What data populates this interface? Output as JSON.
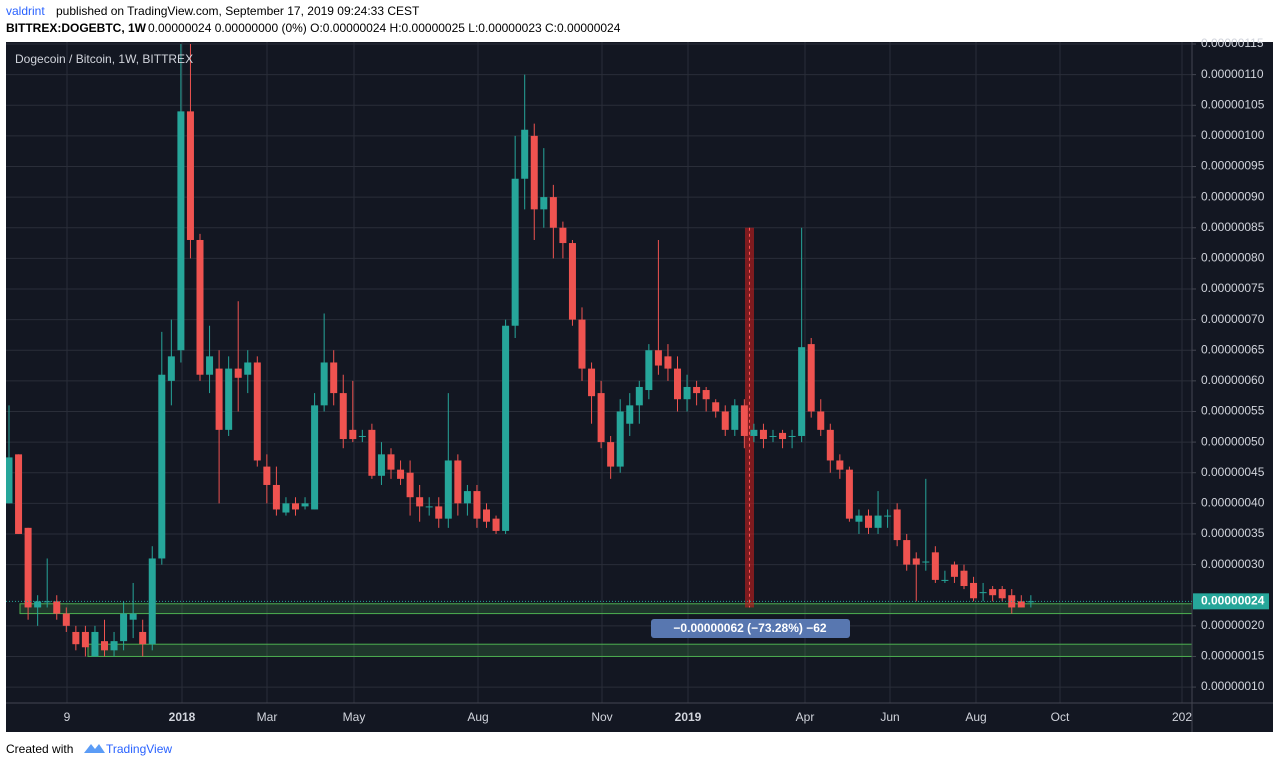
{
  "header": {
    "author": "valdrint",
    "published": "published on TradingView.com, September 17, 2019 09:24:33 CEST",
    "symbol": "BITTREX:DOGEBTC, 1W",
    "quote": "0.00000024 0.00000000 (0%) O:0.00000024 H:0.00000025 L:0.00000023 C:0.00000024"
  },
  "footer": {
    "created": "Created with",
    "brand": "TradingView"
  },
  "chart_data": {
    "type": "candlestick",
    "title": "Dogecoin / Bitcoin, 1W, BITTREX",
    "up_color": "#26a69a",
    "down_color": "#ef5350",
    "open": [
      4e-07,
      4.8e-07,
      3.6e-07,
      2.3e-07,
      2.4e-07,
      2.4e-07,
      2.2e-07,
      1.9e-07,
      1.9e-07,
      1.5e-07,
      1.75e-07,
      1.6e-07,
      1.75e-07,
      2.1e-07,
      1.9e-07,
      1.7e-07,
      3.1e-07,
      6e-07,
      6.5e-07,
      1.04e-06,
      8.3e-07,
      6.1e-07,
      6.2e-07,
      5.2e-07,
      6.2e-07,
      6.1e-07,
      6.3e-07,
      4.6e-07,
      4.3e-07,
      3.85e-07,
      4e-07,
      3.95e-07,
      3.9e-07,
      5.6e-07,
      6.3e-07,
      5.8e-07,
      5.2e-07,
      5.1e-07,
      5.2e-07,
      4.45e-07,
      4.8e-07,
      4.55e-07,
      4.5e-07,
      4.1e-07,
      3.95e-07,
      3.95e-07,
      3.75e-07,
      4.7e-07,
      4e-07,
      4.2e-07,
      3.9e-07,
      3.75e-07,
      3.55e-07,
      6.9e-07,
      9.3e-07,
      1e-06,
      8.8e-07,
      9e-07,
      8.5e-07,
      8.25e-07,
      7e-07,
      6.2e-07,
      5.8e-07,
      5e-07,
      4.6e-07,
      5.3e-07,
      5.6e-07,
      5.85e-07,
      6.5e-07,
      6.4e-07,
      6.2e-07,
      5.7e-07,
      5.9e-07,
      5.85e-07,
      5.65e-07,
      5.5e-07,
      5.2e-07,
      5.6e-07,
      5.1e-07,
      5.2e-07,
      5.1e-07,
      5.15e-07,
      5.1e-07,
      5.1e-07,
      6.6e-07,
      5.5e-07,
      5.2e-07,
      4.7e-07,
      4.55e-07,
      3.7e-07,
      3.8e-07,
      3.6e-07,
      3.8e-07,
      3.9e-07,
      3.4e-07,
      3.1e-07,
      3.05e-07,
      3.2e-07,
      2.75e-07,
      3e-07,
      2.9e-07,
      2.7e-07,
      2.55e-07,
      2.6e-07,
      2.6e-07,
      2.5e-07,
      2.4e-07,
      2.4e-07
    ],
    "high": [
      5.6e-07,
      4.8e-07,
      3.6e-07,
      2.5e-07,
      3.1e-07,
      2.5e-07,
      2.3e-07,
      2e-07,
      2e-07,
      2e-07,
      2.1e-07,
      1.9e-07,
      2.4e-07,
      2.7e-07,
      2.1e-07,
      3.3e-07,
      6.8e-07,
      7e-07,
      1.15e-06,
      1.15e-06,
      8.4e-07,
      6.9e-07,
      6.5e-07,
      6.4e-07,
      7.3e-07,
      6.5e-07,
      6.4e-07,
      4.8e-07,
      4.6e-07,
      4.1e-07,
      4.1e-07,
      4.1e-07,
      5.8e-07,
      7.1e-07,
      6.5e-07,
      6.1e-07,
      6e-07,
      5.2e-07,
      5.3e-07,
      5e-07,
      4.9e-07,
      4.7e-07,
      4.7e-07,
      4.3e-07,
      4.1e-07,
      4.1e-07,
      5.8e-07,
      4.8e-07,
      4.3e-07,
      4.3e-07,
      4e-07,
      3.8e-07,
      7e-07,
      1e-06,
      1.1e-06,
      1.02e-06,
      9.8e-07,
      9.2e-07,
      8.6e-07,
      8.3e-07,
      7.2e-07,
      6.3e-07,
      6e-07,
      5.1e-07,
      5.7e-07,
      5.8e-07,
      6e-07,
      6.6e-07,
      8.3e-07,
      6.6e-07,
      6.4e-07,
      6.1e-07,
      6e-07,
      5.9e-07,
      5.7e-07,
      5.6e-07,
      5.7e-07,
      5.7e-07,
      5.3e-07,
      5.3e-07,
      5.2e-07,
      5.2e-07,
      5.2e-07,
      8.5e-07,
      6.7e-07,
      5.7e-07,
      5.3e-07,
      4.8e-07,
      4.6e-07,
      3.9e-07,
      3.9e-07,
      4.2e-07,
      3.9e-07,
      4e-07,
      3.5e-07,
      3.2e-07,
      4.4e-07,
      3.3e-07,
      2.9e-07,
      3.05e-07,
      3e-07,
      2.8e-07,
      2.7e-07,
      2.65e-07,
      2.65e-07,
      2.6e-07,
      2.5e-07,
      2.5e-07
    ],
    "low": [
      4e-07,
      3.5e-07,
      2.1e-07,
      2e-07,
      2.3e-07,
      2.1e-07,
      1.9e-07,
      1.6e-07,
      1.5e-07,
      1.5e-07,
      1.5e-07,
      1.5e-07,
      1.6e-07,
      1.8e-07,
      1.5e-07,
      1.6e-07,
      3e-07,
      5.6e-07,
      6.3e-07,
      8e-07,
      6e-07,
      5.8e-07,
      4e-07,
      5.1e-07,
      5.5e-07,
      5.8e-07,
      4.6e-07,
      4e-07,
      3.8e-07,
      3.8e-07,
      3.8e-07,
      3.9e-07,
      3.9e-07,
      5.5e-07,
      5.6e-07,
      4.9e-07,
      5e-07,
      5e-07,
      4.4e-07,
      4.3e-07,
      4.4e-07,
      4.3e-07,
      3.8e-07,
      3.7e-07,
      3.8e-07,
      3.6e-07,
      3.6e-07,
      3.8e-07,
      3.8e-07,
      3.6e-07,
      3.6e-07,
      3.5e-07,
      3.5e-07,
      6.7e-07,
      8.8e-07,
      8.3e-07,
      8.5e-07,
      8e-07,
      8e-07,
      6.9e-07,
      6e-07,
      5.3e-07,
      4.9e-07,
      4.4e-07,
      4.5e-07,
      5.1e-07,
      5.3e-07,
      5.7e-07,
      6.1e-07,
      6e-07,
      5.5e-07,
      5.5e-07,
      5.6e-07,
      5.5e-07,
      5.4e-07,
      5.1e-07,
      5.1e-07,
      4.9e-07,
      5e-07,
      4.9e-07,
      5e-07,
      4.9e-07,
      4.9e-07,
      5e-07,
      5.4e-07,
      5.1e-07,
      4.5e-07,
      4.4e-07,
      3.7e-07,
      3.5e-07,
      3.5e-07,
      3.5e-07,
      3.6e-07,
      3.3e-07,
      2.9e-07,
      2.4e-07,
      2.9e-07,
      2.7e-07,
      2.7e-07,
      2.7e-07,
      2.6e-07,
      2.4e-07,
      2.4e-07,
      2.4e-07,
      2.4e-07,
      2.2e-07,
      2.3e-07,
      2.3e-07
    ],
    "close": [
      4.75e-07,
      3.5e-07,
      2.3e-07,
      2.4e-07,
      2.4e-07,
      2.2e-07,
      2e-07,
      1.7e-07,
      1.65e-07,
      1.9e-07,
      1.6e-07,
      1.75e-07,
      2.2e-07,
      2.2e-07,
      1.7e-07,
      3.1e-07,
      6.1e-07,
      6.4e-07,
      1.04e-06,
      8.3e-07,
      6.1e-07,
      6.4e-07,
      5.2e-07,
      6.2e-07,
      6.05e-07,
      6.3e-07,
      4.7e-07,
      4.3e-07,
      3.9e-07,
      4e-07,
      3.9e-07,
      4e-07,
      5.6e-07,
      6.3e-07,
      5.8e-07,
      5.05e-07,
      5.05e-07,
      5.1e-07,
      4.45e-07,
      4.8e-07,
      4.55e-07,
      4.4e-07,
      4.1e-07,
      3.95e-07,
      3.95e-07,
      3.75e-07,
      4.7e-07,
      4e-07,
      4.2e-07,
      3.75e-07,
      3.7e-07,
      3.55e-07,
      6.9e-07,
      9.3e-07,
      1.01e-06,
      8.8e-07,
      9e-07,
      8.5e-07,
      8.25e-07,
      7e-07,
      6.2e-07,
      5.75e-07,
      5e-07,
      4.6e-07,
      5.5e-07,
      5.6e-07,
      5.9e-07,
      6.5e-07,
      6.25e-07,
      6.2e-07,
      5.7e-07,
      5.9e-07,
      5.8e-07,
      5.7e-07,
      5.5e-07,
      5.2e-07,
      5.6e-07,
      5.1e-07,
      5.2e-07,
      5.05e-07,
      5.1e-07,
      5.05e-07,
      5.1e-07,
      6.55e-07,
      5.5e-07,
      5.2e-07,
      4.7e-07,
      4.55e-07,
      3.75e-07,
      3.8e-07,
      3.6e-07,
      3.8e-07,
      3.8e-07,
      3.4e-07,
      3e-07,
      3e-07,
      3.05e-07,
      2.75e-07,
      2.75e-07,
      2.8e-07,
      2.65e-07,
      2.45e-07,
      2.55e-07,
      2.5e-07,
      2.45e-07,
      2.3e-07,
      2.3e-07,
      2.4e-07
    ],
    "xtick_labels": [
      "9",
      "2018",
      "Mar",
      "May",
      "Aug",
      "Nov",
      "2019",
      "Apr",
      "Jun",
      "Aug",
      "Oct",
      "202"
    ],
    "ylim": [
      7.4e-08,
      1.15e-06
    ],
    "yticks": [
      {
        "value": 1e-07,
        "label": "0.00000010"
      },
      {
        "value": 1.5e-07,
        "label": "0.00000015"
      },
      {
        "value": 2e-07,
        "label": "0.00000020"
      },
      {
        "value": 3e-07,
        "label": "0.00000030"
      },
      {
        "value": 3.5e-07,
        "label": "0.00000035"
      },
      {
        "value": 4e-07,
        "label": "0.00000040"
      },
      {
        "value": 4.5e-07,
        "label": "0.00000045"
      },
      {
        "value": 5e-07,
        "label": "0.00000050"
      },
      {
        "value": 5.5e-07,
        "label": "0.00000055"
      },
      {
        "value": 6e-07,
        "label": "0.00000060"
      },
      {
        "value": 6.5e-07,
        "label": "0.00000065"
      },
      {
        "value": 7e-07,
        "label": "0.00000070"
      },
      {
        "value": 7.5e-07,
        "label": "0.00000075"
      },
      {
        "value": 8e-07,
        "label": "0.00000080"
      },
      {
        "value": 8.5e-07,
        "label": "0.00000085"
      },
      {
        "value": 9e-07,
        "label": "0.00000090"
      },
      {
        "value": 9.5e-07,
        "label": "0.00000095"
      },
      {
        "value": 1e-06,
        "label": "0.00000100"
      },
      {
        "value": 1.05e-06,
        "label": "0.00000105"
      },
      {
        "value": 1.1e-06,
        "label": "0.00000110"
      },
      {
        "value": 1.15e-06,
        "label": "0.00000115"
      }
    ],
    "last_price": {
      "value": 2.4e-07,
      "label": "0.00000024"
    },
    "zones": [
      [
        2.2e-07,
        2.36e-07
      ],
      [
        1.5e-07,
        1.7e-07
      ]
    ],
    "measure": {
      "from": 8.5e-07,
      "to": 2.3e-07,
      "label": "−0.00000062 (−73.28%) −62"
    },
    "grid": true
  }
}
